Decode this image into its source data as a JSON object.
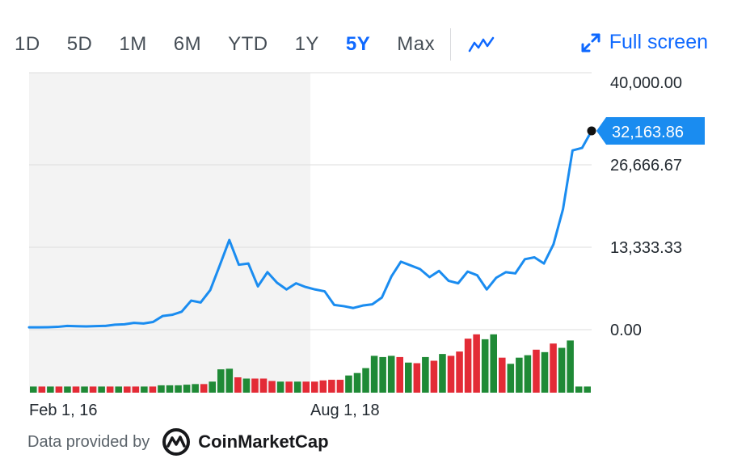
{
  "toolbar": {
    "ranges": [
      "1D",
      "5D",
      "1M",
      "6M",
      "YTD",
      "1Y",
      "5Y",
      "Max"
    ],
    "active_range": "5Y",
    "chart_type_icon": "line-chart-icon",
    "fullscreen_label": "Full screen",
    "fullscreen_icon": "expand-arrows-icon"
  },
  "footer": {
    "provided_label": "Data provided by",
    "brand_name": "CoinMarketCap",
    "brand_icon": "coinmarketcap-logo"
  },
  "colors": {
    "accent": "#0f69ff",
    "line": "#1a8cf0",
    "volume_up": "#1f8a36",
    "volume_down": "#e32b36",
    "shade": "#f3f3f3",
    "grid": "#dcdcdc"
  },
  "chart_data": {
    "type": "line",
    "title": "",
    "xlabel": "",
    "ylabel": "",
    "ylim": [
      0,
      40000
    ],
    "yticks": [
      "40,000.00",
      "26,666.67",
      "13,333.33",
      "0.00"
    ],
    "ytick_values": [
      40000,
      26666.67,
      13333.33,
      0
    ],
    "xticks": [
      "Feb 1, 16",
      "Aug 1, 18"
    ],
    "last_price_label": "32,163.86",
    "last_price": 32163.86,
    "grid": true,
    "shaded_range": [
      "Feb 1, 16",
      "Aug 1, 18"
    ],
    "series": [
      {
        "values": [
          370,
          380,
          400,
          450,
          600,
          560,
          520,
          570,
          610,
          800,
          870,
          1100,
          1000,
          1240,
          2200,
          2400,
          2900,
          4700,
          4400,
          6400,
          10400,
          14500,
          10500,
          10700,
          7000,
          9300,
          7600,
          6500,
          7500,
          6900,
          6500,
          6200,
          4000,
          3800,
          3500,
          3900,
          4100,
          5200,
          8600,
          11000,
          10400,
          9800,
          8500,
          9500,
          7900,
          7500,
          9400,
          8800,
          6500,
          8400,
          9300,
          9100,
          11400,
          11700,
          10700,
          13800,
          19500,
          29000,
          29400,
          32163.86
        ]
      }
    ],
    "volume": [
      {
        "v": 0.1,
        "up": true
      },
      {
        "v": 0.1,
        "up": false
      },
      {
        "v": 0.1,
        "up": true
      },
      {
        "v": 0.1,
        "up": false
      },
      {
        "v": 0.1,
        "up": true
      },
      {
        "v": 0.1,
        "up": false
      },
      {
        "v": 0.1,
        "up": true
      },
      {
        "v": 0.1,
        "up": false
      },
      {
        "v": 0.1,
        "up": true
      },
      {
        "v": 0.1,
        "up": false
      },
      {
        "v": 0.1,
        "up": true
      },
      {
        "v": 0.1,
        "up": false
      },
      {
        "v": 0.1,
        "up": false
      },
      {
        "v": 0.1,
        "up": true
      },
      {
        "v": 0.1,
        "up": false
      },
      {
        "v": 0.12,
        "up": true
      },
      {
        "v": 0.12,
        "up": true
      },
      {
        "v": 0.12,
        "up": true
      },
      {
        "v": 0.13,
        "up": true
      },
      {
        "v": 0.14,
        "up": true
      },
      {
        "v": 0.14,
        "up": false
      },
      {
        "v": 0.18,
        "up": true
      },
      {
        "v": 0.38,
        "up": true
      },
      {
        "v": 0.39,
        "up": true
      },
      {
        "v": 0.25,
        "up": false
      },
      {
        "v": 0.23,
        "up": true
      },
      {
        "v": 0.23,
        "up": false
      },
      {
        "v": 0.23,
        "up": false
      },
      {
        "v": 0.19,
        "up": false
      },
      {
        "v": 0.18,
        "up": true
      },
      {
        "v": 0.18,
        "up": false
      },
      {
        "v": 0.18,
        "up": true
      },
      {
        "v": 0.18,
        "up": false
      },
      {
        "v": 0.18,
        "up": false
      },
      {
        "v": 0.2,
        "up": false
      },
      {
        "v": 0.21,
        "up": false
      },
      {
        "v": 0.21,
        "up": false
      },
      {
        "v": 0.28,
        "up": true
      },
      {
        "v": 0.32,
        "up": true
      },
      {
        "v": 0.4,
        "up": true
      },
      {
        "v": 0.6,
        "up": true
      },
      {
        "v": 0.58,
        "up": true
      },
      {
        "v": 0.6,
        "up": true
      },
      {
        "v": 0.58,
        "up": false
      },
      {
        "v": 0.49,
        "up": true
      },
      {
        "v": 0.48,
        "up": false
      },
      {
        "v": 0.58,
        "up": true
      },
      {
        "v": 0.52,
        "up": false
      },
      {
        "v": 0.63,
        "up": true
      },
      {
        "v": 0.6,
        "up": false
      },
      {
        "v": 0.67,
        "up": false
      },
      {
        "v": 0.88,
        "up": false
      },
      {
        "v": 0.95,
        "up": false
      },
      {
        "v": 0.87,
        "up": true
      },
      {
        "v": 0.95,
        "up": true
      },
      {
        "v": 0.57,
        "up": false
      },
      {
        "v": 0.47,
        "up": true
      },
      {
        "v": 0.57,
        "up": true
      },
      {
        "v": 0.61,
        "up": true
      },
      {
        "v": 0.7,
        "up": false
      },
      {
        "v": 0.66,
        "up": true
      },
      {
        "v": 0.8,
        "up": false
      },
      {
        "v": 0.73,
        "up": true
      },
      {
        "v": 0.85,
        "up": true
      },
      {
        "v": 0.1,
        "up": true
      },
      {
        "v": 0.1,
        "up": true
      }
    ]
  }
}
